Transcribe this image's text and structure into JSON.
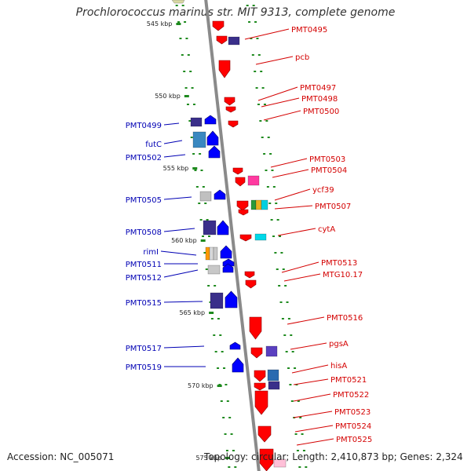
{
  "title": "Prochlorococcus marinus str. MIT 9313, complete genome",
  "footer": {
    "accession": "Accession: NC_005071",
    "topology": "Topology: circular; Length: 2,410,873 bp; Genes: 2,324"
  },
  "colors": {
    "forward_label": "#d40000",
    "reverse_label": "#0000b4",
    "backbone": "#8a8a8a",
    "tick": "#1e8a1e"
  },
  "ruler": [
    {
      "label": "545 kbp"
    },
    {
      "label": "550 kbp"
    },
    {
      "label": "555 kbp"
    },
    {
      "label": "560 kbp"
    },
    {
      "label": "565 kbp"
    },
    {
      "label": "570 kbp"
    },
    {
      "label": "575 kbp"
    }
  ],
  "reverse_genes": [
    {
      "label": "PMT0499"
    },
    {
      "label": "futC"
    },
    {
      "label": "PMT0502"
    },
    {
      "label": "PMT0505"
    },
    {
      "label": "PMT0508"
    },
    {
      "label": "rimI"
    },
    {
      "label": "PMT0511"
    },
    {
      "label": "PMT0512"
    },
    {
      "label": "PMT0515"
    },
    {
      "label": "PMT0517"
    },
    {
      "label": "PMT0519"
    }
  ],
  "forward_genes": [
    {
      "label": "PMT0495"
    },
    {
      "label": "pcb"
    },
    {
      "label": "PMT0497"
    },
    {
      "label": "PMT0498"
    },
    {
      "label": "PMT0500"
    },
    {
      "label": "PMT0503"
    },
    {
      "label": "PMT0504"
    },
    {
      "label": "ycf39"
    },
    {
      "label": "PMT0507"
    },
    {
      "label": "cytA"
    },
    {
      "label": "PMT0513"
    },
    {
      "label": "MTG10.17"
    },
    {
      "label": "PMT0516"
    },
    {
      "label": "pgsA"
    },
    {
      "label": "hisA"
    },
    {
      "label": "PMT0521"
    },
    {
      "label": "PMT0522"
    },
    {
      "label": "PMT0523"
    },
    {
      "label": "PMT0524"
    },
    {
      "label": "PMT0525"
    }
  ]
}
